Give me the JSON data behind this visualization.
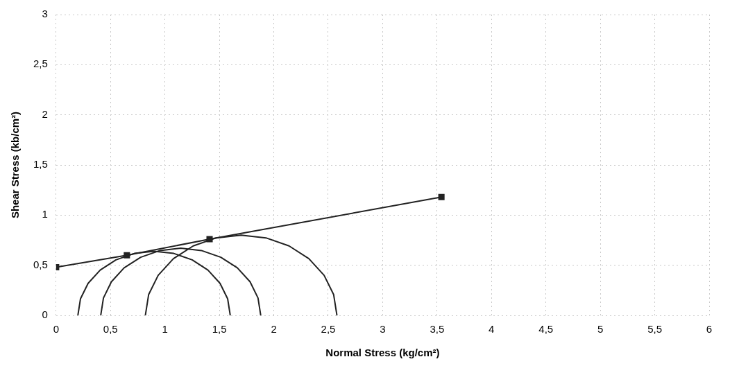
{
  "chart_data": {
    "type": "line",
    "xlabel": "Normal Stress (kg/cm²)",
    "ylabel": "Shear Stress (kb/cm²)",
    "xlim": [
      0,
      6
    ],
    "ylim": [
      0,
      3
    ],
    "xticks": [
      0,
      {
        "value": 0.5,
        "label": "0,5"
      },
      1,
      {
        "value": 1.5,
        "label": "1,5"
      },
      2,
      {
        "value": 2.5,
        "label": "2,5"
      },
      3,
      {
        "value": 3.5,
        "label": "3,5"
      },
      4,
      {
        "value": 4.5,
        "label": "4,5"
      },
      5,
      {
        "value": 5.5,
        "label": "5,5"
      },
      6
    ],
    "yticks": [
      0,
      {
        "value": 0.5,
        "label": "0,5"
      },
      1,
      {
        "value": 1.5,
        "label": "1,5"
      },
      2,
      {
        "value": 2.5,
        "label": "2,5"
      },
      3
    ],
    "grid": true,
    "legend": false,
    "line_style": "solid",
    "series": [
      {
        "color": "#222222",
        "marker": "square",
        "x": [
          0,
          0.65,
          1.41,
          3.54
        ],
        "values": [
          0.48,
          0.6,
          0.76,
          1.18
        ]
      },
      {
        "color": "#222222",
        "marker": "none",
        "x": [
          1.6,
          1.576,
          1.506,
          1.395,
          1.25,
          1.081,
          0.9,
          0.719,
          0.55,
          0.405,
          0.294,
          0.224,
          0.2
        ],
        "values": [
          0,
          0.166,
          0.32,
          0.452,
          0.554,
          0.618,
          0.64,
          0.618,
          0.554,
          0.452,
          0.32,
          0.166,
          0
        ]
      },
      {
        "color": "#222222",
        "marker": "none",
        "x": [
          1.88,
          1.855,
          1.782,
          1.665,
          1.513,
          1.335,
          1.145,
          0.955,
          0.777,
          0.625,
          0.508,
          0.435,
          0.41
        ],
        "values": [
          0,
          0.174,
          0.335,
          0.474,
          0.58,
          0.647,
          0.67,
          0.647,
          0.58,
          0.474,
          0.335,
          0.174,
          0
        ]
      },
      {
        "color": "#222222",
        "marker": "none",
        "x": [
          2.58,
          2.55,
          2.462,
          2.322,
          2.14,
          1.928,
          1.7,
          1.472,
          1.26,
          1.078,
          0.938,
          0.85,
          0.82
        ],
        "values": [
          0,
          0.207,
          0.4,
          0.566,
          0.693,
          0.773,
          0.8,
          0.773,
          0.693,
          0.566,
          0.4,
          0.207,
          0
        ]
      }
    ]
  }
}
